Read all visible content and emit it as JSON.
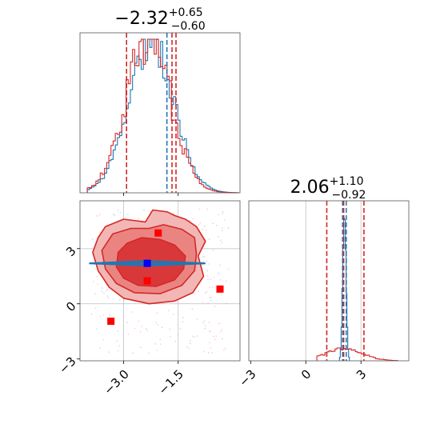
{
  "chart_data": {
    "type": "corner",
    "colors": {
      "red": "#d62728",
      "blue": "#1f77b4",
      "marker_red": "#ff0000",
      "marker_blue": "#0000ff",
      "grid": "#c8c8c8"
    },
    "parameters": [
      {
        "label": "",
        "title": {
          "median": "2.32",
          "sign": "−",
          "plus": "+0.65",
          "minus": "−0.60"
        },
        "range": [
          -4.2,
          0.2
        ],
        "ticks": [
          -3.0,
          -1.5
        ],
        "tick_labels": [
          "−3.0",
          "−1.5"
        ]
      },
      {
        "label": "",
        "title": {
          "median": "2.06",
          "sign": "",
          "plus": "+1.10",
          "minus": "−0.92"
        },
        "range": [
          -3.1,
          5.6
        ],
        "ticks": [
          -3,
          0,
          3
        ],
        "tick_labels": [
          "−3",
          "0",
          "3"
        ]
      }
    ],
    "hist_1": {
      "red_quantiles": [
        -2.92,
        -1.67,
        -1.56
      ],
      "blue_quantiles": [
        -1.81
      ],
      "red_centers": [
        -2.32,
        0.3
      ],
      "blue_centers": [
        -2.24,
        0.28
      ]
    },
    "hist_2": {
      "red_quantiles": [
        1.14,
        2.06,
        3.16
      ],
      "blue_quantiles": [
        2.0,
        2.2
      ],
      "blue_center": 2.1,
      "blue_width": 0.09
    },
    "scatter_2d": {
      "x_gridlines": [
        -3.0,
        -1.5
      ],
      "y_gridlines": [
        0,
        3
      ],
      "red_squares": [
        {
          "x": -2.05,
          "y": 3.85
        },
        {
          "x": -2.35,
          "y": 1.25
        },
        {
          "x": -0.35,
          "y": 0.8
        },
        {
          "x": -3.35,
          "y": -0.95
        }
      ],
      "blue_square": {
        "x": -2.35,
        "y": 2.2
      },
      "red_contours": [
        [
          [
            -3.5,
            4.2
          ],
          [
            -3.0,
            4.6
          ],
          [
            -2.4,
            4.45
          ],
          [
            -2.2,
            5.1
          ],
          [
            -1.8,
            5.0
          ],
          [
            -1.6,
            4.8
          ],
          [
            -1.3,
            4.6
          ],
          [
            -1.0,
            4.2
          ],
          [
            -0.75,
            3.4
          ],
          [
            -0.95,
            2.6
          ],
          [
            -0.8,
            1.5
          ],
          [
            -1.1,
            0.6
          ],
          [
            -1.6,
            0.15
          ],
          [
            -2.3,
            0.0
          ],
          [
            -3.0,
            0.3
          ],
          [
            -3.4,
            0.9
          ],
          [
            -3.7,
            1.8
          ],
          [
            -3.85,
            2.8
          ],
          [
            -3.7,
            3.6
          ]
        ],
        [
          [
            -3.3,
            3.8
          ],
          [
            -2.8,
            4.1
          ],
          [
            -2.3,
            4.1
          ],
          [
            -1.9,
            4.3
          ],
          [
            -1.4,
            4.05
          ],
          [
            -1.05,
            3.6
          ],
          [
            -1.0,
            2.7
          ],
          [
            -1.05,
            1.8
          ],
          [
            -1.4,
            1.0
          ],
          [
            -2.0,
            0.55
          ],
          [
            -2.7,
            0.6
          ],
          [
            -3.2,
            1.1
          ],
          [
            -3.5,
            1.9
          ],
          [
            -3.6,
            2.9
          ]
        ],
        [
          [
            -2.9,
            3.3
          ],
          [
            -2.5,
            3.6
          ],
          [
            -2.0,
            3.5
          ],
          [
            -1.6,
            3.2
          ],
          [
            -1.3,
            2.6
          ],
          [
            -1.35,
            1.9
          ],
          [
            -1.6,
            1.3
          ],
          [
            -2.1,
            0.95
          ],
          [
            -2.6,
            1.0
          ],
          [
            -3.0,
            1.4
          ],
          [
            -3.2,
            2.0
          ],
          [
            -3.15,
            2.8
          ]
        ]
      ],
      "blue_contours": [
        [
          [
            -3.95,
            2.2
          ],
          [
            -2.35,
            2.32
          ],
          [
            -0.75,
            2.2
          ],
          [
            -2.35,
            2.08
          ]
        ],
        [
          [
            -3.6,
            2.2
          ],
          [
            -2.35,
            2.27
          ],
          [
            -1.1,
            2.2
          ],
          [
            -2.35,
            2.13
          ]
        ]
      ]
    }
  }
}
